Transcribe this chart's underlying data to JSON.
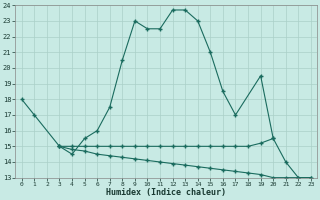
{
  "xlabel": "Humidex (Indice chaleur)",
  "line1_x": [
    0,
    1,
    3,
    4,
    5,
    6,
    7,
    8,
    9,
    10,
    11,
    12,
    13,
    14,
    15,
    16,
    17,
    19,
    20
  ],
  "line1_y": [
    18,
    17,
    15,
    14.5,
    15.5,
    16,
    17.5,
    20.5,
    23,
    22.5,
    22.5,
    23.7,
    23.7,
    23,
    21,
    18.5,
    17,
    19.5,
    15.5
  ],
  "line2_x": [
    3,
    4,
    5,
    6,
    7,
    8,
    9,
    10,
    11,
    12,
    13,
    14,
    15,
    16,
    17,
    18,
    19,
    20,
    21,
    22,
    23
  ],
  "line2_y": [
    15.0,
    15.0,
    15.0,
    15.0,
    15.0,
    15.0,
    15.0,
    15.0,
    15.0,
    15.0,
    15.0,
    15.0,
    15.0,
    15.0,
    15.0,
    15.0,
    15.2,
    15.5,
    14.0,
    13.0,
    13.0
  ],
  "line3_x": [
    3,
    4,
    5,
    6,
    7,
    8,
    9,
    10,
    11,
    12,
    13,
    14,
    15,
    16,
    17,
    18,
    19,
    20,
    21,
    22,
    23
  ],
  "line3_y": [
    15.0,
    14.8,
    14.7,
    14.5,
    14.4,
    14.3,
    14.2,
    14.1,
    14.0,
    13.9,
    13.8,
    13.7,
    13.6,
    13.5,
    13.4,
    13.3,
    13.2,
    13.0,
    13.0,
    13.0,
    13.0
  ],
  "ylim": [
    13,
    24
  ],
  "xlim": [
    -0.5,
    23.5
  ],
  "yticks": [
    13,
    14,
    15,
    16,
    17,
    18,
    19,
    20,
    21,
    22,
    23,
    24
  ],
  "xticks": [
    0,
    1,
    2,
    3,
    4,
    5,
    6,
    7,
    8,
    9,
    10,
    11,
    12,
    13,
    14,
    15,
    16,
    17,
    18,
    19,
    20,
    21,
    22,
    23
  ],
  "line_color": "#1a6b5e",
  "bg_color": "#c8eae4",
  "grid_color": "#aad0c8"
}
